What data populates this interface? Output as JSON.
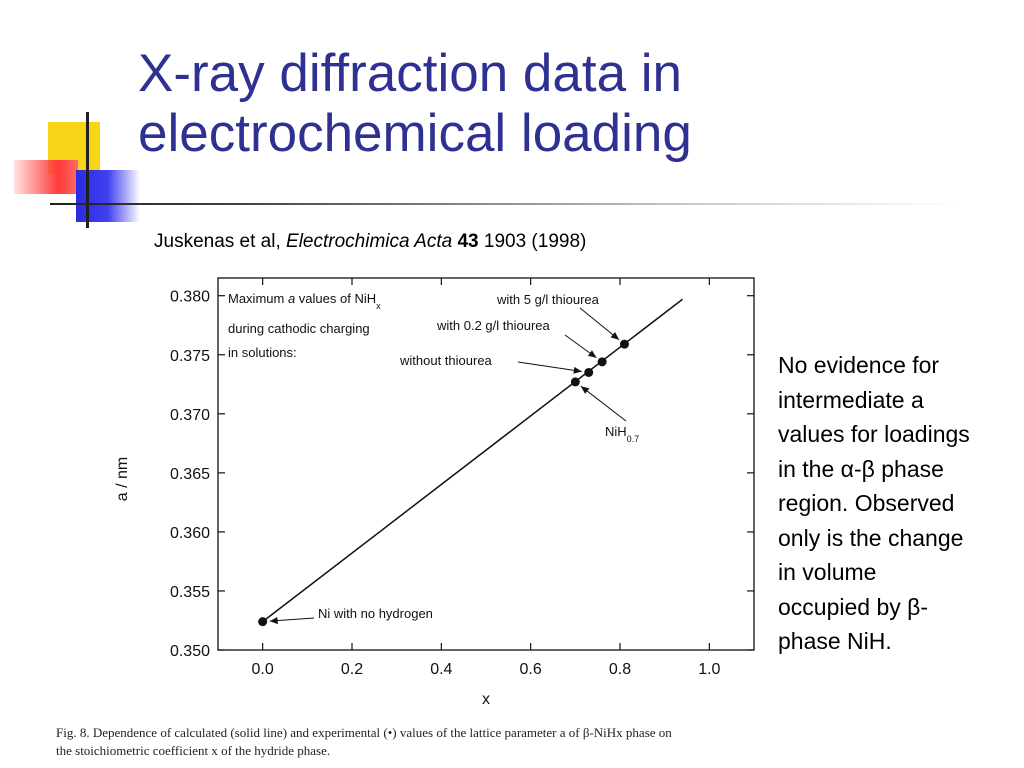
{
  "slide": {
    "title_line1": "X-ray diffraction data in",
    "title_line2": "electrochemical loading",
    "citation": {
      "authors": "Juskenas et al, ",
      "journal": "Electrochimica Acta",
      "volume": "43",
      "rest": " 1903 (1998)"
    },
    "note_lines": [
      "No evidence for",
      "intermediate a",
      "values for loadings",
      "in the α-β phase",
      "region.  Observed",
      "only is the change",
      "in volume",
      "occupied by β-",
      "phase NiH."
    ],
    "caption_line1": "Fig. 8. Dependence of calculated (solid line) and experimental (•) values of the lattice parameter a of β-NiHx phase on",
    "caption_line2": "the stoichiometric coefficient x of the hydride phase."
  },
  "colors": {
    "title": "#2e3192",
    "deco_yellow": "#f7d417",
    "deco_red": "#ff3a3a",
    "deco_blue": "#2b2be0",
    "chart_ink": "#111111"
  },
  "chart_data": {
    "type": "scatter",
    "xlabel": "x",
    "ylabel": "a / nm",
    "xlim": [
      -0.1,
      1.1
    ],
    "ylim": [
      0.35,
      0.3815
    ],
    "x_ticks": [
      0.0,
      0.2,
      0.4,
      0.6,
      0.8,
      1.0
    ],
    "x_tick_labels": [
      "0.0",
      "0.2",
      "0.4",
      "0.6",
      "0.8",
      "1.0"
    ],
    "y_ticks": [
      0.35,
      0.355,
      0.36,
      0.365,
      0.37,
      0.375,
      0.38
    ],
    "y_tick_labels": [
      "0.350",
      "0.355",
      "0.360",
      "0.365",
      "0.370",
      "0.375",
      "0.380"
    ],
    "grid": false,
    "series": [
      {
        "type": "line",
        "x": [
          0.0,
          0.94
        ],
        "y": [
          0.3524,
          0.3797
        ]
      },
      {
        "type": "scatter",
        "x": [
          0.0,
          0.7,
          0.73,
          0.76,
          0.81
        ],
        "y": [
          0.3524,
          0.3727,
          0.3735,
          0.3744,
          0.3759
        ]
      }
    ],
    "legend_text": {
      "line1": "Maximum ",
      "italic": "a",
      "line1b": "  values of NiH",
      "sub": "x",
      "line2": "during cathodic charging",
      "line3": "in solutions:"
    },
    "annotations": [
      {
        "text": "with 5 g/l thiourea",
        "sub": "",
        "point": 4
      },
      {
        "text": "with 0.2 g/l thiourea",
        "sub": "",
        "point": 3
      },
      {
        "text": "without thiourea",
        "sub": "",
        "point": 2
      },
      {
        "text": "NiH",
        "sub": "0.7",
        "point": 1
      },
      {
        "text": "Ni with no hydrogen",
        "sub": "",
        "point": 0
      }
    ]
  }
}
